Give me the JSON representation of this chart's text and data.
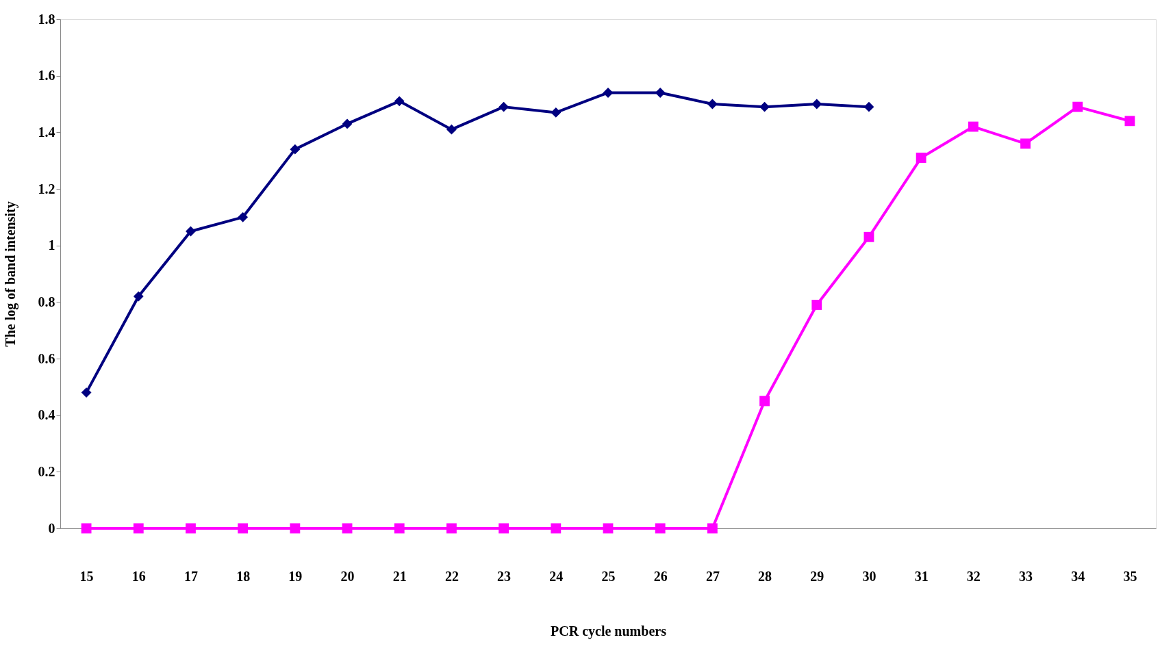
{
  "chart_data": {
    "type": "line",
    "xlabel": "PCR cycle numbers",
    "ylabel": "The log of band intensity",
    "categories": [
      "15",
      "16",
      "17",
      "18",
      "19",
      "20",
      "21",
      "22",
      "23",
      "24",
      "25",
      "26",
      "27",
      "28",
      "29",
      "30",
      "31",
      "32",
      "33",
      "34",
      "35"
    ],
    "series": [
      {
        "color": "#000080",
        "marker": "diamond",
        "values": [
          0.48,
          0.82,
          1.05,
          1.1,
          1.34,
          1.43,
          1.51,
          1.41,
          1.49,
          1.47,
          1.54,
          1.54,
          1.5,
          1.49,
          1.5,
          1.49,
          null,
          null,
          null,
          null,
          null
        ]
      },
      {
        "color": "#ff00ff",
        "marker": "square",
        "values": [
          0,
          0,
          0,
          0,
          0,
          0,
          0,
          0,
          0,
          0,
          0,
          0,
          0,
          0.45,
          0.79,
          1.03,
          1.31,
          1.42,
          1.36,
          1.49,
          1.44
        ]
      }
    ],
    "ylim": [
      0,
      1.8
    ],
    "yticks": [
      0,
      0.2,
      0.4,
      0.6,
      0.8,
      1,
      1.2,
      1.4,
      1.6,
      1.8
    ],
    "grid": false,
    "line_style": "solid"
  }
}
